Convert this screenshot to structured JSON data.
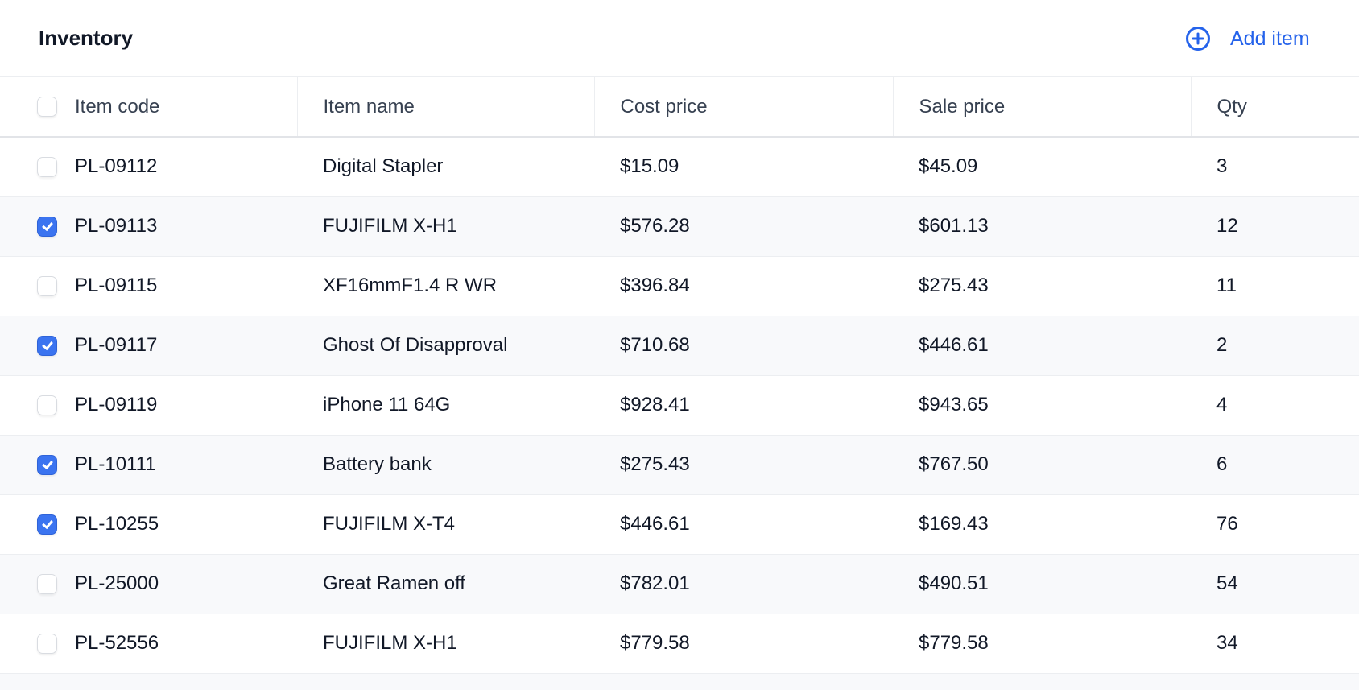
{
  "header": {
    "title": "Inventory",
    "add_label": "Add item",
    "add_icon": "plus-circle-icon"
  },
  "colors": {
    "accent": "#2563eb",
    "checkbox_checked": "#3b74f0",
    "row_alt": "#f8f9fb"
  },
  "table": {
    "columns": [
      "Item code",
      "Item name",
      "Cost price",
      "Sale price",
      "Qty"
    ],
    "select_all_checked": false,
    "rows": [
      {
        "checked": false,
        "code": "PL-09112",
        "name": "Digital Stapler",
        "cost": "$15.09",
        "sale": "$45.09",
        "qty": "3"
      },
      {
        "checked": true,
        "code": "PL-09113",
        "name": "FUJIFILM X-H1",
        "cost": "$576.28",
        "sale": "$601.13",
        "qty": "12"
      },
      {
        "checked": false,
        "code": "PL-09115",
        "name": "XF16mmF1.4 R WR",
        "cost": "$396.84",
        "sale": "$275.43",
        "qty": "11"
      },
      {
        "checked": true,
        "code": "PL-09117",
        "name": "Ghost Of Disapproval",
        "cost": "$710.68",
        "sale": "$446.61",
        "qty": "2"
      },
      {
        "checked": false,
        "code": "PL-09119",
        "name": "iPhone 11 64G",
        "cost": "$928.41",
        "sale": "$943.65",
        "qty": "4"
      },
      {
        "checked": true,
        "code": "PL-10111",
        "name": "Battery bank",
        "cost": "$275.43",
        "sale": "$767.50",
        "qty": "6"
      },
      {
        "checked": true,
        "code": "PL-10255",
        "name": "FUJIFILM X-T4",
        "cost": "$446.61",
        "sale": "$169.43",
        "qty": "76"
      },
      {
        "checked": false,
        "code": "PL-25000",
        "name": "Great Ramen off",
        "cost": "$782.01",
        "sale": "$490.51",
        "qty": "54"
      },
      {
        "checked": false,
        "code": "PL-52556",
        "name": "FUJIFILM X-H1",
        "cost": "$779.58",
        "sale": "$779.58",
        "qty": "34"
      }
    ]
  }
}
